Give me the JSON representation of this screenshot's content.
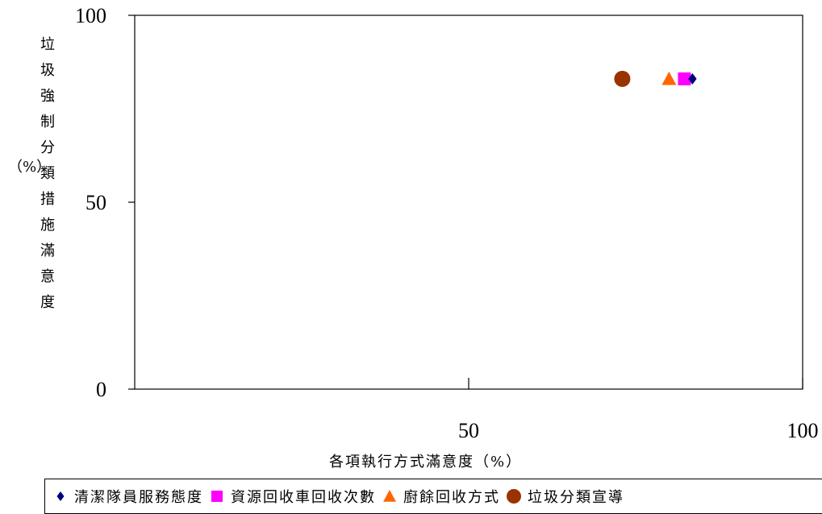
{
  "chart_data": {
    "type": "scatter",
    "title": "",
    "xlabel": "各項執行方式滿意度（%）",
    "ylabel": "垃圾強制分類措施滿意度",
    "ylabel_unit": "（%）",
    "xlim": [
      0,
      100
    ],
    "ylim": [
      0,
      100
    ],
    "x_ticks": [
      50,
      100
    ],
    "y_ticks": [
      0,
      50,
      100
    ],
    "grid": false,
    "legend_position": "bottom",
    "series": [
      {
        "name": "清潔隊員服務態度",
        "marker": "diamond",
        "color": "#000080",
        "points": [
          {
            "x": 83.5,
            "y": 83
          }
        ]
      },
      {
        "name": "資源回收車回收次數",
        "marker": "square",
        "color": "#ff00ff",
        "points": [
          {
            "x": 82.3,
            "y": 83
          }
        ]
      },
      {
        "name": "廚餘回收方式",
        "marker": "triangle",
        "color": "#ff6600",
        "points": [
          {
            "x": 80.0,
            "y": 83
          }
        ]
      },
      {
        "name": "垃圾分類宣導",
        "marker": "circle",
        "color": "#993300",
        "points": [
          {
            "x": 73.0,
            "y": 83
          }
        ]
      }
    ]
  }
}
